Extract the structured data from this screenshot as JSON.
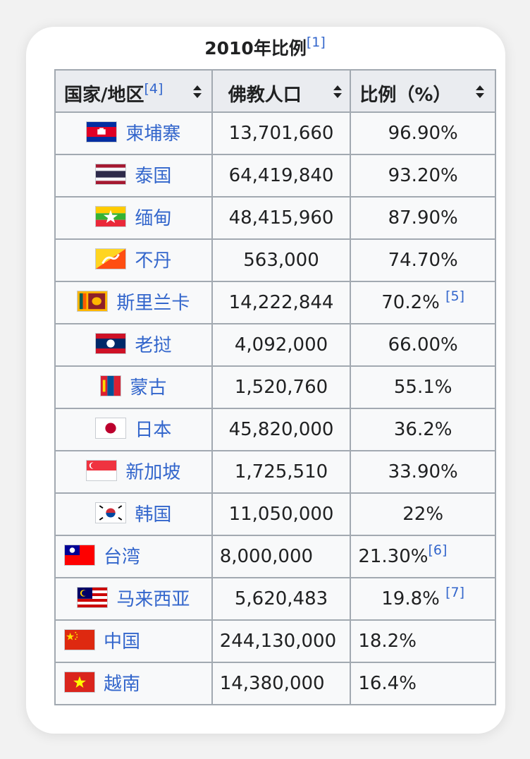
{
  "caption": {
    "title": "2010年比例",
    "ref": "[1]"
  },
  "headers": [
    {
      "label": "国家/地区",
      "ref": "[4]"
    },
    {
      "label": "佛教人口",
      "ref": ""
    },
    {
      "label": "比例（%）",
      "ref": ""
    }
  ],
  "rows": [
    {
      "country": "柬埔寨",
      "flag": "cambodia-flag-icon",
      "population": "13,701,660",
      "percent": "96.90%",
      "ref": ""
    },
    {
      "country": "泰国",
      "flag": "thailand-flag-icon",
      "population": "64,419,840",
      "percent": "93.20%",
      "ref": ""
    },
    {
      "country": "缅甸",
      "flag": "myanmar-flag-icon",
      "population": "48,415,960",
      "percent": "87.90%",
      "ref": ""
    },
    {
      "country": "不丹",
      "flag": "bhutan-flag-icon",
      "population": "563,000",
      "percent": "74.70%",
      "ref": ""
    },
    {
      "country": "斯里兰卡",
      "flag": "sri-lanka-flag-icon",
      "population": "14,222,844",
      "percent": "70.2%",
      "ref": "[5]"
    },
    {
      "country": "老挝",
      "flag": "laos-flag-icon",
      "population": "4,092,000",
      "percent": "66.00%",
      "ref": ""
    },
    {
      "country": "蒙古",
      "flag": "mongolia-flag-icon",
      "population": "1,520,760",
      "percent": "55.1%",
      "ref": ""
    },
    {
      "country": "日本",
      "flag": "japan-flag-icon",
      "population": "45,820,000",
      "percent": "36.2%",
      "ref": ""
    },
    {
      "country": "新加坡",
      "flag": "singapore-flag-icon",
      "population": "1,725,510",
      "percent": "33.90%",
      "ref": ""
    },
    {
      "country": "韩国",
      "flag": "korea-flag-icon",
      "population": "11,050,000",
      "percent": "22%",
      "ref": ""
    },
    {
      "country": "台湾",
      "flag": "taiwan-flag-icon",
      "population": "8,000,000",
      "percent": "21.30%",
      "ref": "[6]"
    },
    {
      "country": "马来西亚",
      "flag": "malaysia-flag-icon",
      "population": "5,620,483",
      "percent": "19.8%",
      "ref": "[7]"
    },
    {
      "country": "中国",
      "flag": "china-flag-icon",
      "population": "244,130,000",
      "percent": "18.2%",
      "ref": ""
    },
    {
      "country": "越南",
      "flag": "vietnam-flag-icon",
      "population": "14,380,000",
      "percent": "16.4%",
      "ref": ""
    }
  ],
  "colors": {
    "link": "#3366cc",
    "border": "#a2a9b1",
    "header_bg": "#eaecf0",
    "cell_bg": "#f8f9fa",
    "text": "#202122"
  }
}
